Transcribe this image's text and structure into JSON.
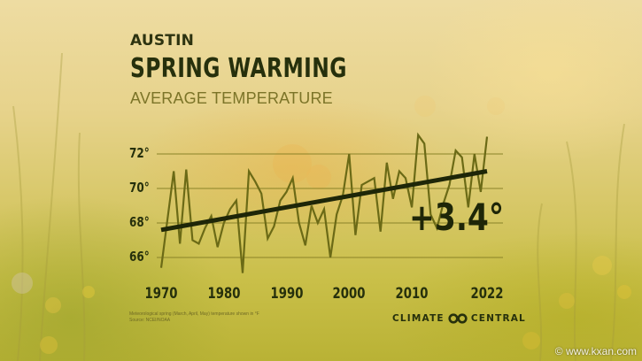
{
  "header": {
    "city": "AUSTIN",
    "title": "SPRING WARMING",
    "subtitle": "AVERAGE TEMPERATURE"
  },
  "annotation": {
    "change": "+3.4°"
  },
  "footnote": {
    "line1": "Meteorological spring (March, April, May) temperature shown in °F",
    "line2": "Source: NCEI/NOAA"
  },
  "logo": {
    "left": "CLIMATE",
    "right": "CENTRAL",
    "icon": "infinity-loop-icon"
  },
  "watermark": "© www.kxan.com",
  "colors": {
    "line": "#6b6a16",
    "trend": "#1e2608",
    "grid": "#8a8428",
    "text": "#26300c"
  },
  "chart_data": {
    "type": "line",
    "title": "SPRING WARMING",
    "subtitle": "AVERAGE TEMPERATURE",
    "location": "AUSTIN",
    "xlabel": "",
    "ylabel": "",
    "ylim": [
      65,
      73.5
    ],
    "xlim": [
      1970,
      2022
    ],
    "grid": true,
    "legend": "none",
    "y_ticks": [
      "66°",
      "68°",
      "70°",
      "72°"
    ],
    "y_tick_values": [
      66,
      68,
      70,
      72
    ],
    "x_ticks": [
      "1970",
      "1980",
      "1990",
      "2000",
      "2010",
      "2022"
    ],
    "x_tick_values": [
      1970,
      1980,
      1990,
      2000,
      2010,
      2022
    ],
    "x": [
      1970,
      1971,
      1972,
      1973,
      1974,
      1975,
      1976,
      1977,
      1978,
      1979,
      1980,
      1981,
      1982,
      1983,
      1984,
      1985,
      1986,
      1987,
      1988,
      1989,
      1990,
      1991,
      1992,
      1993,
      1994,
      1995,
      1996,
      1997,
      1998,
      1999,
      2000,
      2001,
      2002,
      2003,
      2004,
      2005,
      2006,
      2007,
      2008,
      2009,
      2010,
      2011,
      2012,
      2013,
      2014,
      2015,
      2016,
      2017,
      2018,
      2019,
      2020,
      2021,
      2022
    ],
    "series": [
      {
        "name": "Spring average temperature (°F)",
        "values": [
          65.4,
          68.2,
          71.0,
          66.8,
          71.1,
          67.0,
          66.8,
          67.7,
          68.4,
          66.6,
          68.0,
          68.8,
          69.3,
          65.1,
          71.0,
          70.4,
          69.7,
          67.1,
          67.8,
          69.3,
          69.8,
          70.6,
          68.0,
          66.7,
          69.0,
          68.0,
          68.8,
          66.0,
          68.5,
          69.6,
          72.0,
          67.3,
          70.2,
          70.4,
          70.6,
          67.5,
          71.5,
          69.4,
          71.0,
          70.6,
          68.9,
          73.1,
          72.6,
          68.5,
          67.7,
          69.1,
          70.2,
          72.2,
          71.8,
          68.9,
          72.0,
          69.8,
          73.0
        ]
      },
      {
        "name": "Trend",
        "values_at": {
          "1970": 67.6,
          "2022": 71.0
        },
        "change": 3.4
      }
    ],
    "annotations": [
      "+3.4°"
    ]
  }
}
